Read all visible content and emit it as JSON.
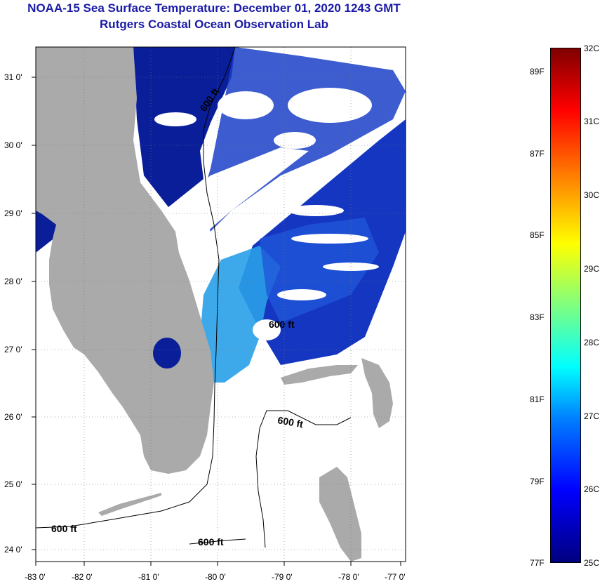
{
  "title": {
    "line1": "NOAA-15 Sea Surface Temperature:  December 01, 2020 1243 GMT",
    "line2": "Rutgers Coastal Ocean Observation Lab"
  },
  "map": {
    "lon_labels": [
      "-83 0'",
      "-82 0'",
      "-81 0'",
      "-80 0'",
      "-79 0'",
      "-78 0'",
      "-77 0'"
    ],
    "lat_labels": [
      "31 0'",
      "30 0'",
      "29 0'",
      "28 0'",
      "27 0'",
      "26 0'",
      "25 0'",
      "24 0'"
    ],
    "contour_label": "600 ft",
    "colors": {
      "land": "#aaaaaa",
      "deep_ocean": "#0a1e9a",
      "mid_ocean": "#1f56d8",
      "warm_ocean": "#29a0e8",
      "cloud": "#ffffff"
    }
  },
  "colorbar": {
    "fahrenheit_labels": [
      "89F",
      "87F",
      "85F",
      "83F",
      "81F",
      "79F",
      "77F"
    ],
    "celsius_labels": [
      "32C",
      "31C",
      "30C",
      "29C",
      "28C",
      "27C",
      "26C",
      "25C"
    ]
  }
}
